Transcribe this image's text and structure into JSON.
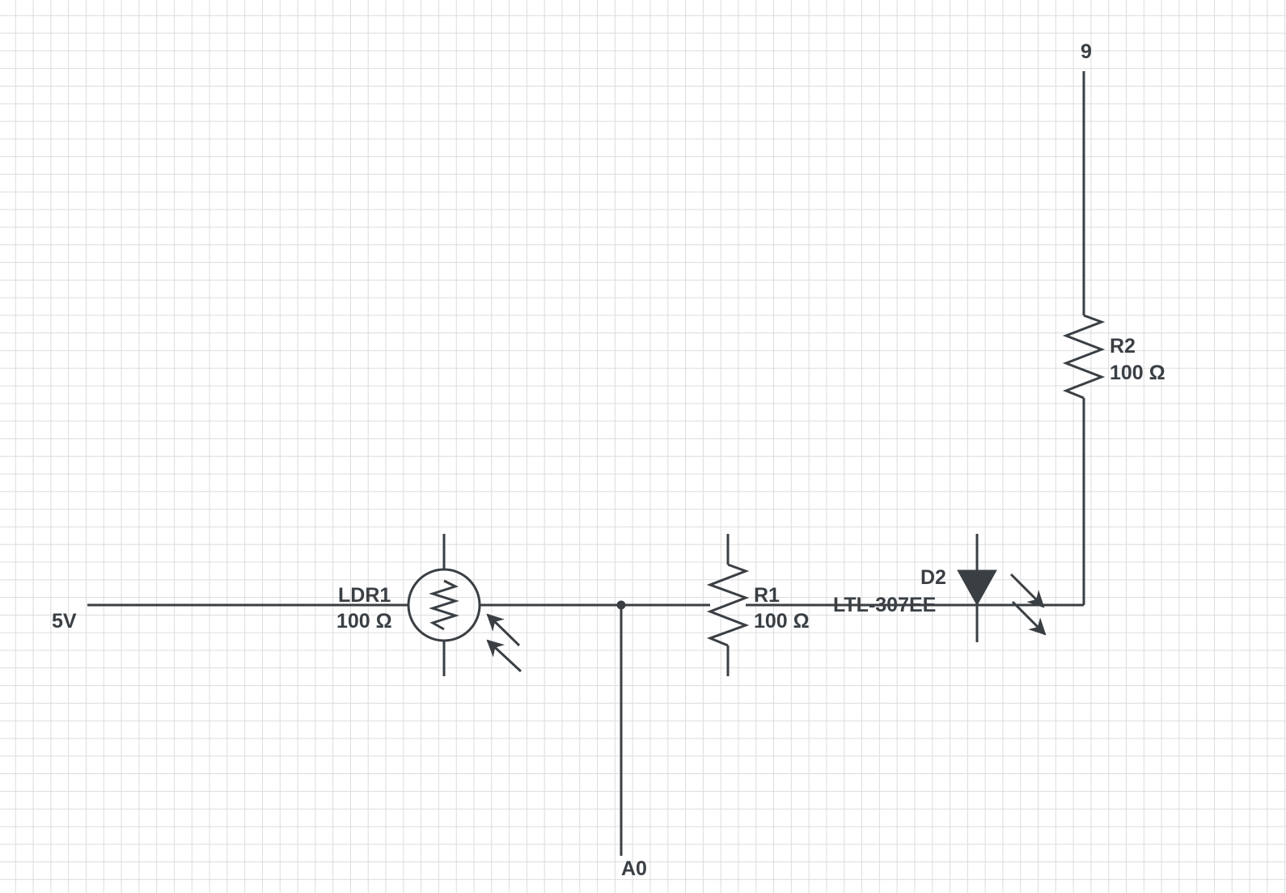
{
  "labels": {
    "supply": "5V",
    "pin_out": "9",
    "analog_in": "A0"
  },
  "components": {
    "ldr1": {
      "name": "LDR1",
      "value": "100 Ω"
    },
    "r1": {
      "name": "R1",
      "value": "100 Ω"
    },
    "r2": {
      "name": "R2",
      "value": "100 Ω"
    },
    "d2": {
      "name": "D2",
      "part": "LTL-307EE"
    }
  },
  "colors": {
    "ink": "#3a3f44",
    "grid": "#dcdcdc",
    "background": "#ffffff"
  }
}
